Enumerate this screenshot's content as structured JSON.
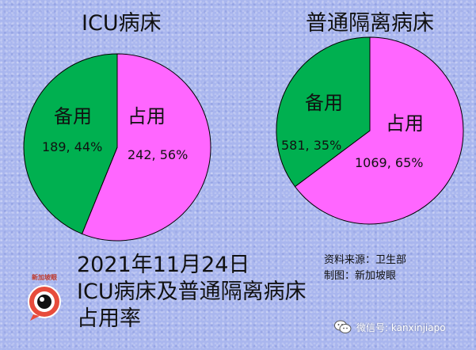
{
  "chart_data": [
    {
      "type": "pie",
      "title": "ICU病床",
      "slices": [
        {
          "label": "占用",
          "value": 242,
          "percent": 56,
          "value_text": "242, 56%",
          "color": "#ff66ff"
        },
        {
          "label": "备用",
          "value": 189,
          "percent": 44,
          "value_text": "189, 44%",
          "color": "#00b050"
        }
      ]
    },
    {
      "type": "pie",
      "title": "普通隔离病床",
      "slices": [
        {
          "label": "占用",
          "value": 1069,
          "percent": 65,
          "value_text": "1069, 65%",
          "color": "#ff66ff"
        },
        {
          "label": "备用",
          "value": 581,
          "percent": 35,
          "value_text": "581, 35%",
          "color": "#00b050"
        }
      ]
    }
  ],
  "main_title": {
    "line1": "2021年11月24日",
    "line2": "ICU病床及普通隔离病床",
    "line3": "占用率"
  },
  "credits": {
    "source": "资料来源：卫生部",
    "made_by": "制图：新加坡眼"
  },
  "logo": {
    "text": "新加坡眼"
  },
  "watermark": {
    "text": "微信号: kanxinjiapo"
  }
}
